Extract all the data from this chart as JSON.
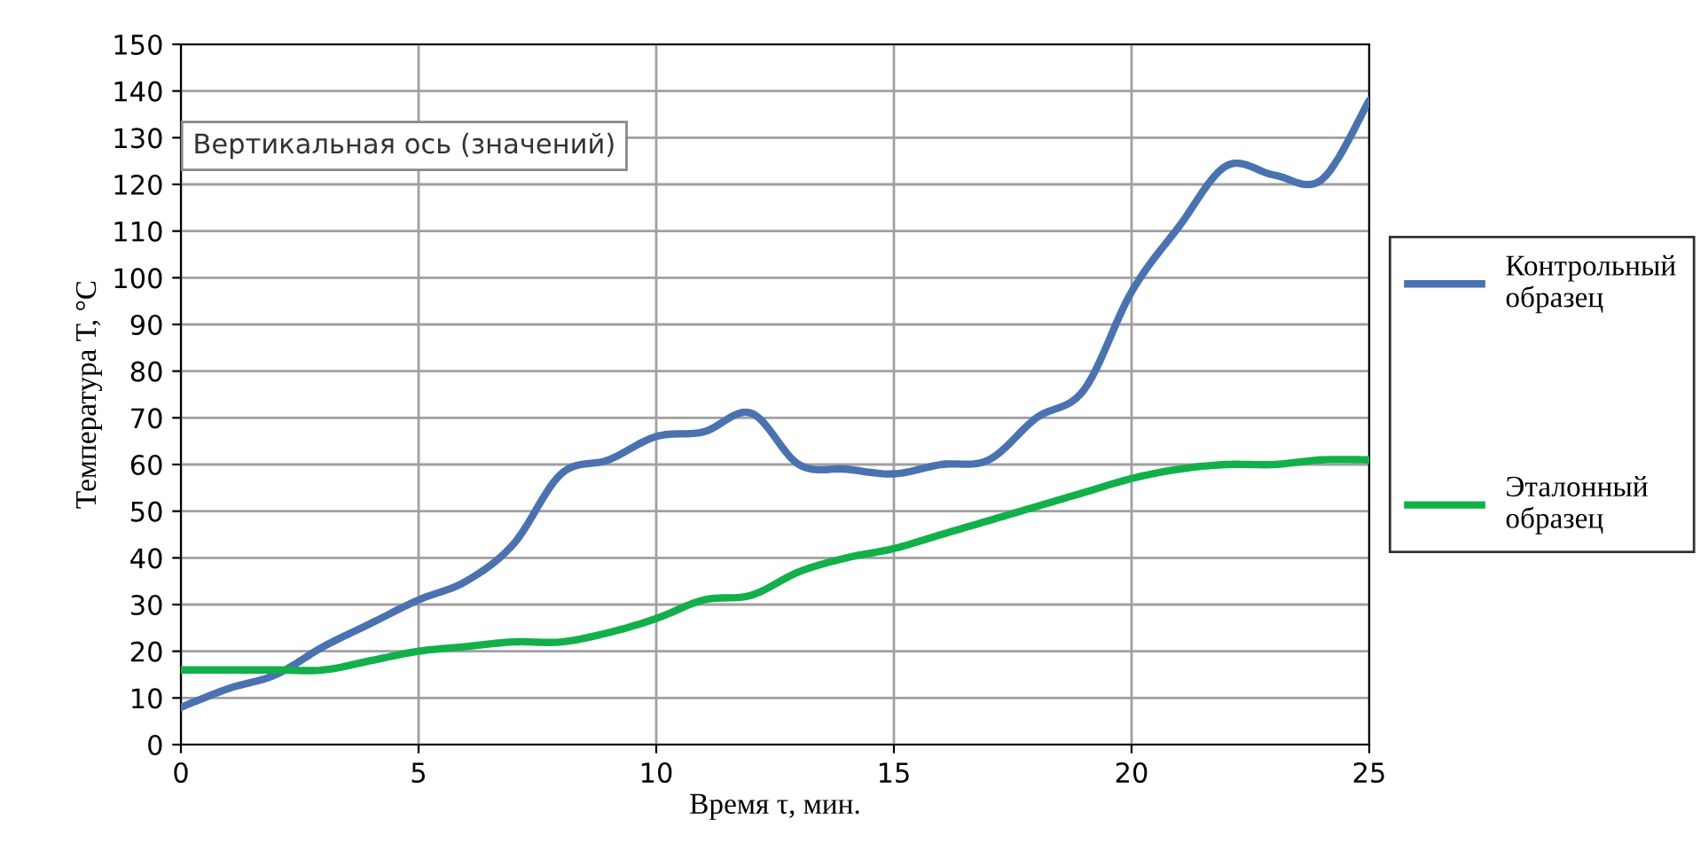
{
  "chart_data": {
    "type": "line",
    "xlabel": "Время τ, мин.",
    "ylabel": "Температура Т, °С",
    "annotations": [
      "Вертикальная ось (значений)"
    ],
    "x": [
      0,
      1,
      2,
      3,
      4,
      5,
      6,
      7,
      8,
      9,
      10,
      11,
      12,
      13,
      14,
      15,
      16,
      17,
      18,
      19,
      20,
      21,
      22,
      23,
      24,
      25
    ],
    "series": [
      {
        "name": "Контрольный образец",
        "color": "#4a72b0",
        "values": [
          8,
          12,
          15,
          21,
          26,
          31,
          35,
          43,
          58,
          61,
          66,
          67,
          71,
          60,
          59,
          58,
          60,
          61,
          70,
          76,
          97,
          111,
          124,
          122,
          121,
          138
        ]
      },
      {
        "name": "Эталонный образец",
        "color": "#12b04a",
        "values": [
          16,
          16,
          16,
          16,
          18,
          20,
          21,
          22,
          22,
          24,
          27,
          31,
          32,
          37,
          40,
          42,
          45,
          48,
          51,
          54,
          57,
          59,
          60,
          60,
          61,
          61
        ]
      }
    ],
    "xlim": [
      0,
      25
    ],
    "xticks": [
      0,
      5,
      10,
      15,
      20,
      25
    ],
    "ylim": [
      0,
      150
    ],
    "yticks": [
      0,
      10,
      20,
      30,
      40,
      50,
      60,
      70,
      80,
      90,
      100,
      110,
      120,
      130,
      140,
      150
    ],
    "grid": true,
    "legend": "right",
    "marker": "none",
    "line_style": "solid"
  }
}
